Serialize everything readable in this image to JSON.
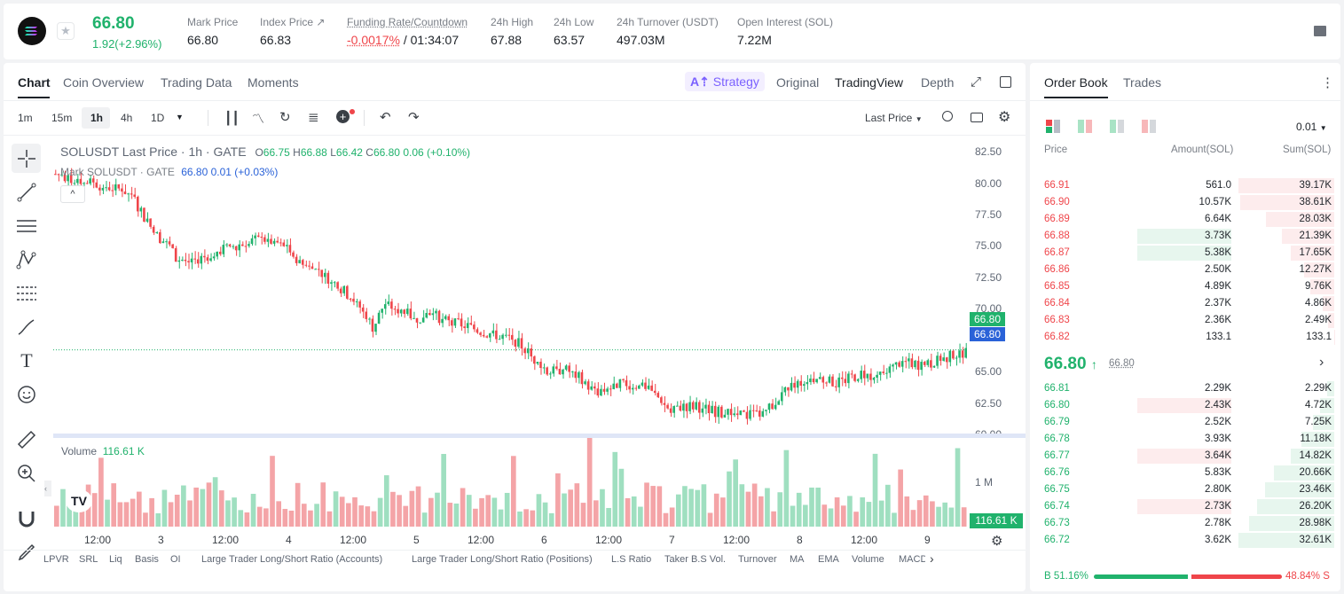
{
  "ticker": {
    "price": "66.80",
    "change": "1.92(+2.96%)",
    "stats": [
      {
        "label": "Mark Price",
        "value": "66.80"
      },
      {
        "label": "Index Price",
        "value": "66.83"
      },
      {
        "label": "Funding Rate/Countdown",
        "value": "-0.0017%",
        "value2": " / 01:34:07"
      },
      {
        "label": "24h High",
        "value": "67.88"
      },
      {
        "label": "24h Low",
        "value": "63.57"
      },
      {
        "label": "24h Turnover (USDT)",
        "value": "497.03M"
      },
      {
        "label": "Open Interest (SOL)",
        "value": "7.22M"
      }
    ]
  },
  "chart_tabs": [
    "Chart",
    "Coin Overview",
    "Trading Data",
    "Moments"
  ],
  "view_tabs": {
    "strategy": "Strategy",
    "original": "Original",
    "tradingview": "TradingView",
    "depth": "Depth"
  },
  "timeframes": [
    "1m",
    "15m",
    "1h",
    "4h",
    "1D"
  ],
  "price_type": "Last Price",
  "legend": {
    "line1_title": "SOLUSDT Last Price · 1h · GATE",
    "o_lbl": "O",
    "o": "66.75",
    "h_lbl": "H",
    "h": "66.88",
    "l_lbl": "L",
    "l": "66.42",
    "c_lbl": "C",
    "c": "66.80",
    "chg": "0.06 (+0.10%)",
    "line2_title": "Mark SOLUSDT · GATE",
    "line2_vals": "66.80  0.01  (+0.03%)"
  },
  "volume_label": "Volume",
  "volume_value": "116.61 K",
  "volume_axis": "1 M",
  "volume_tag": "116.61 K",
  "last_price_tags": [
    "66.80",
    "66.80"
  ],
  "x_labels": [
    "12:00",
    "3",
    "12:00",
    "4",
    "12:00",
    "5",
    "12:00",
    "6",
    "12:00",
    "7",
    "12:00",
    "8",
    "12:00",
    "9"
  ],
  "indicators": [
    "LPVR",
    "SRL",
    "Liq",
    "Basis",
    "OI",
    "Large Trader Long/Short Ratio (Accounts)",
    "Large Trader Long/Short Ratio (Positions)",
    "L.S Ratio",
    "Taker B.S Vol.",
    "Turnover",
    "MA",
    "EMA",
    "Volume",
    "MACD"
  ],
  "chart_data": {
    "type": "candlestick",
    "y_ticks": [
      82.5,
      80.0,
      77.5,
      75.0,
      72.5,
      70.0,
      65.0,
      62.5,
      60.0
    ],
    "ylim": [
      59.5,
      83.5
    ],
    "close_path": [
      [
        0,
        80.8
      ],
      [
        8,
        80.3
      ],
      [
        14,
        79.9
      ],
      [
        20,
        79.6
      ],
      [
        24,
        79.2
      ],
      [
        28,
        77.3
      ],
      [
        32,
        75.9
      ],
      [
        36,
        75.0
      ],
      [
        38,
        74.1
      ],
      [
        42,
        73.8
      ],
      [
        48,
        74.3
      ],
      [
        54,
        74.9
      ],
      [
        60,
        75.4
      ],
      [
        66,
        75.6
      ],
      [
        70,
        75.3
      ],
      [
        74,
        74.6
      ],
      [
        78,
        73.6
      ],
      [
        84,
        72.9
      ],
      [
        90,
        71.7
      ],
      [
        94,
        70.8
      ],
      [
        98,
        69.6
      ],
      [
        100,
        68.6
      ],
      [
        104,
        70.5
      ],
      [
        108,
        70.0
      ],
      [
        114,
        69.3
      ],
      [
        118,
        69.8
      ],
      [
        120,
        69.5
      ],
      [
        124,
        69.0
      ],
      [
        128,
        68.8
      ],
      [
        134,
        68.3
      ],
      [
        140,
        67.9
      ],
      [
        144,
        67.7
      ],
      [
        148,
        66.9
      ],
      [
        152,
        65.7
      ],
      [
        156,
        65.0
      ],
      [
        160,
        65.3
      ],
      [
        166,
        64.5
      ],
      [
        170,
        63.4
      ],
      [
        174,
        63.6
      ],
      [
        178,
        64.2
      ],
      [
        182,
        64.0
      ],
      [
        186,
        63.7
      ],
      [
        190,
        63.0
      ],
      [
        194,
        61.8
      ],
      [
        198,
        62.3
      ],
      [
        202,
        62.3
      ],
      [
        206,
        62.0
      ],
      [
        210,
        61.8
      ],
      [
        214,
        61.7
      ],
      [
        218,
        61.6
      ],
      [
        222,
        61.8
      ],
      [
        226,
        62.4
      ],
      [
        230,
        63.4
      ],
      [
        234,
        64.2
      ],
      [
        238,
        64.6
      ],
      [
        242,
        64.4
      ],
      [
        246,
        64.1
      ],
      [
        250,
        64.5
      ],
      [
        254,
        64.9
      ],
      [
        258,
        64.6
      ],
      [
        262,
        65.0
      ],
      [
        266,
        65.8
      ],
      [
        270,
        65.7
      ],
      [
        274,
        65.5
      ],
      [
        278,
        65.9
      ],
      [
        282,
        66.3
      ],
      [
        286,
        66.6
      ],
      [
        288,
        66.8
      ]
    ],
    "candle_count": 288,
    "volume_peak": 1.0,
    "volume_last": 116.61
  },
  "order_book": {
    "tabs": [
      "Order Book",
      "Trades"
    ],
    "precision": "0.01",
    "headers": {
      "price": "Price",
      "amount": "Amount(SOL)",
      "sum": "Sum(SOL)"
    },
    "asks": [
      {
        "price": "66.91",
        "amount": "561.0",
        "sum": "39.17K",
        "depth": 1.0,
        "mine": 0
      },
      {
        "price": "66.90",
        "amount": "10.57K",
        "sum": "38.61K",
        "depth": 0.986,
        "mine": 0
      },
      {
        "price": "66.89",
        "amount": "6.64K",
        "sum": "28.03K",
        "depth": 0.716,
        "mine": 0
      },
      {
        "price": "66.88",
        "amount": "3.73K",
        "sum": "21.39K",
        "depth": 0.546,
        "mine": 1
      },
      {
        "price": "66.87",
        "amount": "5.38K",
        "sum": "17.65K",
        "depth": 0.451,
        "mine": 1
      },
      {
        "price": "66.86",
        "amount": "2.50K",
        "sum": "12.27K",
        "depth": 0.313,
        "mine": 0
      },
      {
        "price": "66.85",
        "amount": "4.89K",
        "sum": "9.76K",
        "depth": 0.249,
        "mine": 0
      },
      {
        "price": "66.84",
        "amount": "2.37K",
        "sum": "4.86K",
        "depth": 0.124,
        "mine": 0
      },
      {
        "price": "66.83",
        "amount": "2.36K",
        "sum": "2.49K",
        "depth": 0.064,
        "mine": 0
      },
      {
        "price": "66.82",
        "amount": "133.1",
        "sum": "133.1",
        "depth": 0.003,
        "mine": 0
      }
    ],
    "mid_price": "66.80",
    "mid_mark": "66.80",
    "bids": [
      {
        "price": "66.81",
        "amount": "2.29K",
        "sum": "2.29K",
        "depth": 0.07,
        "mine": 0
      },
      {
        "price": "66.80",
        "amount": "2.43K",
        "sum": "4.72K",
        "depth": 0.145,
        "mine": 1
      },
      {
        "price": "66.79",
        "amount": "2.52K",
        "sum": "7.25K",
        "depth": 0.222,
        "mine": 0
      },
      {
        "price": "66.78",
        "amount": "3.93K",
        "sum": "11.18K",
        "depth": 0.343,
        "mine": 0
      },
      {
        "price": "66.77",
        "amount": "3.64K",
        "sum": "14.82K",
        "depth": 0.454,
        "mine": 1
      },
      {
        "price": "66.76",
        "amount": "5.83K",
        "sum": "20.66K",
        "depth": 0.633,
        "mine": 0
      },
      {
        "price": "66.75",
        "amount": "2.80K",
        "sum": "23.46K",
        "depth": 0.719,
        "mine": 0
      },
      {
        "price": "66.74",
        "amount": "2.73K",
        "sum": "26.20K",
        "depth": 0.803,
        "mine": 1
      },
      {
        "price": "66.73",
        "amount": "2.78K",
        "sum": "28.98K",
        "depth": 0.888,
        "mine": 0
      },
      {
        "price": "66.72",
        "amount": "3.62K",
        "sum": "32.61K",
        "depth": 1.0,
        "mine": 0
      }
    ],
    "buy_ratio": "B 51.16%",
    "sell_ratio": "48.84% S",
    "buy_fraction": 0.5116
  },
  "colors": {
    "up": "#20b26c",
    "down": "#ef454a",
    "accent": "#7b61ff"
  }
}
